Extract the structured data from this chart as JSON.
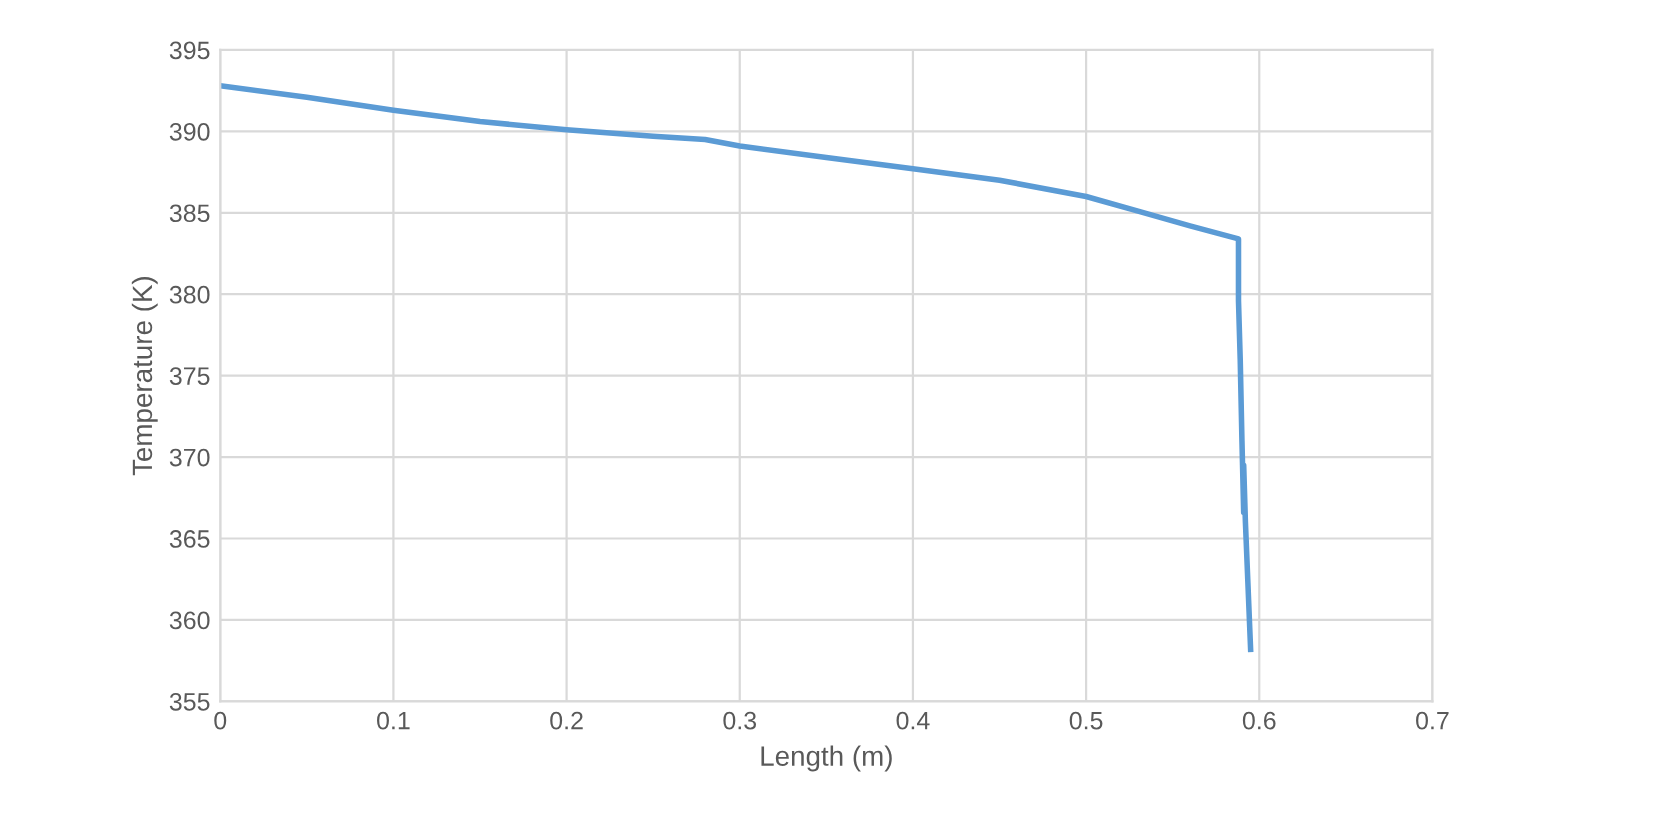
{
  "chart_data": {
    "type": "line",
    "xlabel": "Length (m)",
    "ylabel": "Temperature (K)",
    "x": [
      0,
      0.05,
      0.1,
      0.15,
      0.2,
      0.25,
      0.28,
      0.3,
      0.35,
      0.4,
      0.45,
      0.5,
      0.53,
      0.56,
      0.588,
      0.588,
      0.589,
      0.59,
      0.591,
      0.591,
      0.592,
      0.595
    ],
    "values": [
      392.8,
      392.1,
      391.3,
      390.6,
      390.1,
      389.7,
      389.5,
      389.1,
      388.4,
      387.7,
      387.0,
      386.0,
      385.1,
      384.2,
      383.4,
      379.6,
      376,
      371,
      366.6,
      369.5,
      366,
      358.2
    ],
    "color": "#5b9bd5",
    "xlim": [
      0,
      0.7
    ],
    "ylim": [
      355,
      395
    ],
    "xticks": [
      0,
      0.1,
      0.2,
      0.3,
      0.4,
      0.5,
      0.6,
      0.7
    ],
    "yticks": [
      355,
      360,
      365,
      370,
      375,
      380,
      385,
      390,
      395
    ],
    "grid": true,
    "marker": "none",
    "line_style": "solid",
    "legend": false
  }
}
